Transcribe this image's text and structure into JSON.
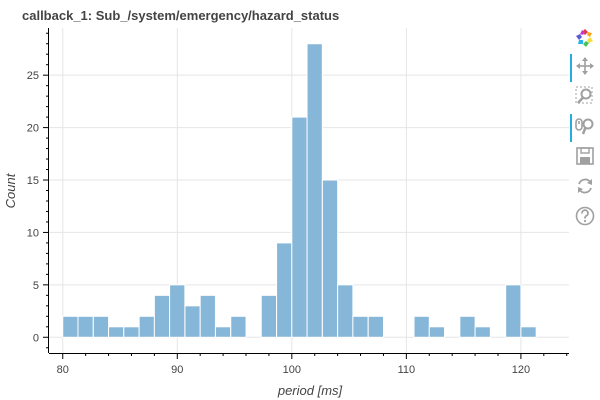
{
  "chart_data": {
    "type": "bar",
    "title": "callback_1: Sub_/system/emergency/hazard_status",
    "xlabel": "period [ms]",
    "ylabel": "Count",
    "xlim": [
      78.8,
      124.2
    ],
    "ylim": [
      -1.5,
      29.5
    ],
    "xticks": [
      80,
      90,
      100,
      110,
      120
    ],
    "yticks": [
      0,
      5,
      10,
      15,
      20,
      25
    ],
    "bin_width": 1.333,
    "bins": [
      {
        "start": 80.0,
        "count": 2
      },
      {
        "start": 81.33,
        "count": 2
      },
      {
        "start": 82.67,
        "count": 2
      },
      {
        "start": 84.0,
        "count": 1
      },
      {
        "start": 85.33,
        "count": 1
      },
      {
        "start": 86.67,
        "count": 2
      },
      {
        "start": 88.0,
        "count": 4
      },
      {
        "start": 89.33,
        "count": 5
      },
      {
        "start": 90.67,
        "count": 3
      },
      {
        "start": 92.0,
        "count": 4
      },
      {
        "start": 93.33,
        "count": 1
      },
      {
        "start": 94.67,
        "count": 2
      },
      {
        "start": 96.0,
        "count": 0
      },
      {
        "start": 97.33,
        "count": 4
      },
      {
        "start": 98.67,
        "count": 9
      },
      {
        "start": 100.0,
        "count": 21
      },
      {
        "start": 101.33,
        "count": 28
      },
      {
        "start": 102.67,
        "count": 15
      },
      {
        "start": 104.0,
        "count": 5
      },
      {
        "start": 105.33,
        "count": 2
      },
      {
        "start": 106.67,
        "count": 2
      },
      {
        "start": 108.0,
        "count": 0
      },
      {
        "start": 109.33,
        "count": 0
      },
      {
        "start": 110.67,
        "count": 2
      },
      {
        "start": 112.0,
        "count": 1
      },
      {
        "start": 113.33,
        "count": 0
      },
      {
        "start": 114.67,
        "count": 2
      },
      {
        "start": 116.0,
        "count": 1
      },
      {
        "start": 117.33,
        "count": 0
      },
      {
        "start": 118.67,
        "count": 5
      },
      {
        "start": 120.0,
        "count": 1
      }
    ],
    "grid": true,
    "bar_color": "#86b6d8"
  },
  "toolbar": {
    "tools": [
      {
        "name": "bokeh-logo-icon",
        "active": false
      },
      {
        "name": "pan-tool-icon",
        "active": true
      },
      {
        "name": "box-zoom-tool-icon",
        "active": false
      },
      {
        "name": "wheel-zoom-tool-icon",
        "active": true
      },
      {
        "name": "save-tool-icon",
        "active": false
      },
      {
        "name": "reset-tool-icon",
        "active": false
      },
      {
        "name": "help-tool-icon",
        "active": false
      }
    ],
    "accent_color": "#26aae1",
    "icon_color": "#a0a0a0"
  }
}
